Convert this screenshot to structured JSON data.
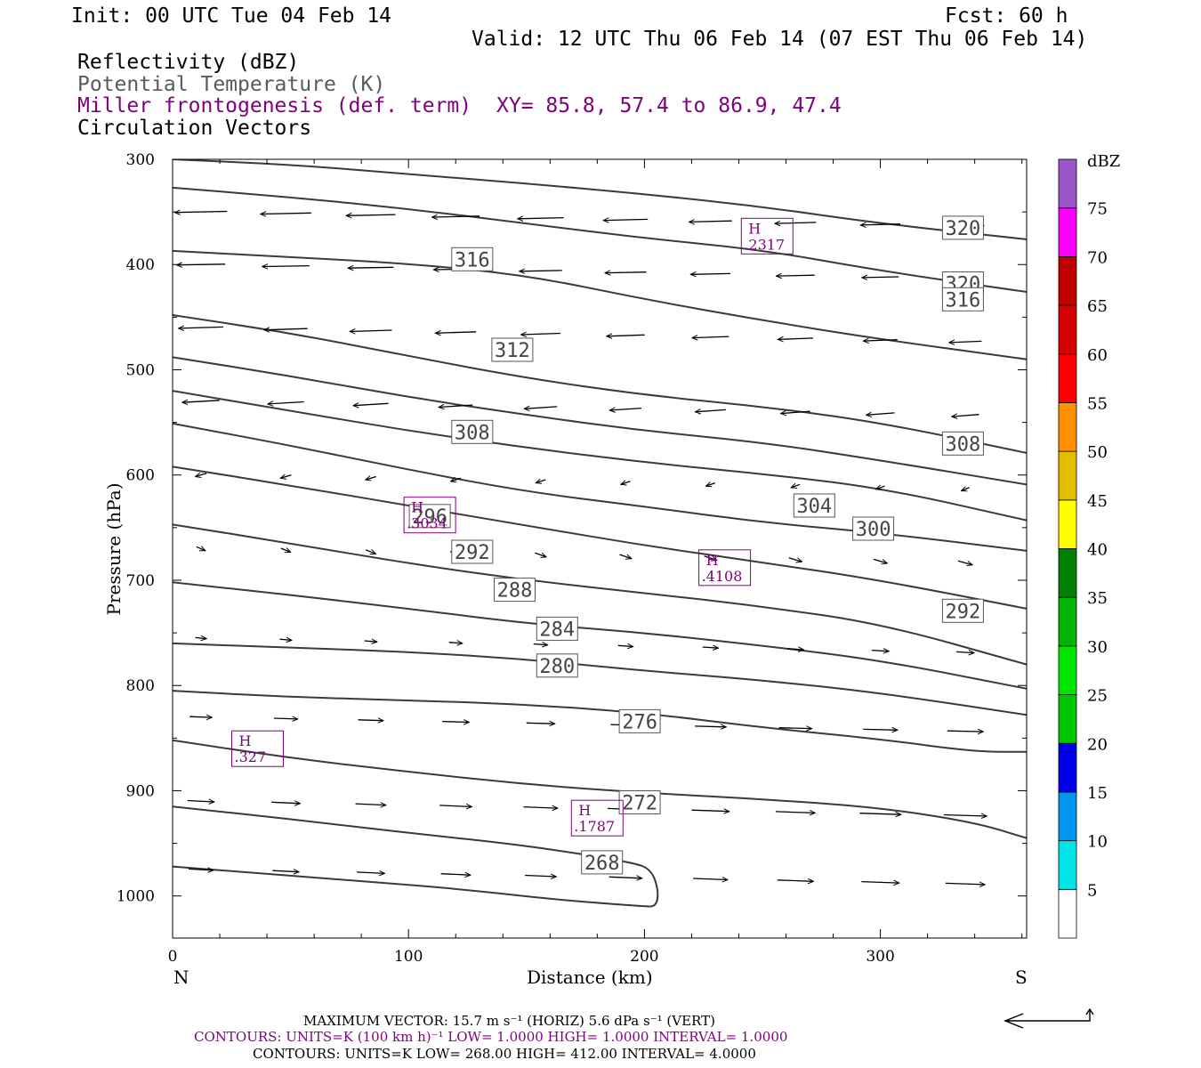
{
  "header": {
    "init": "Init: 00 UTC Tue 04 Feb 14",
    "fcst": "Fcst:   60 h",
    "valid": "Valid: 12 UTC Thu 06 Feb 14 (07 EST Thu 06 Feb 14)"
  },
  "legend": {
    "reflectivity": "Reflectivity (dBZ)",
    "theta": "Potential Temperature (K)",
    "frontogenesis": "Miller frontogenesis (def. term)",
    "xy": "XY=  85.8, 57.4 to  86.9, 47.4",
    "vectors": "Circulation Vectors"
  },
  "footer": {
    "max_vector": "MAXIMUM VECTOR:  15.7 m s⁻¹ (HORIZ)          5.6 dPa s⁻¹ (VERT)",
    "contours_fronto": "CONTOURS:  UNITS=K (100 km h)⁻¹  LOW=   1.0000        HIGH=  1.0000        INTERVAL=    1.0000",
    "contours_theta": "CONTOURS:  UNITS=K  LOW=   268.00       HIGH=  412.00        INTERVAL=     4.0000"
  },
  "colors": {
    "theta_contour": "#3a3a3a",
    "fronto": "#7f007f",
    "vector": "#000000"
  },
  "chart_data": {
    "type": "cross-section",
    "xlabel": "Distance (km)",
    "ylabel": "Pressure (hPa)",
    "xlim": [
      0,
      362
    ],
    "ylim": [
      1040,
      300
    ],
    "x_ticks": [
      0,
      100,
      200,
      300
    ],
    "y_ticks": [
      300,
      400,
      500,
      600,
      700,
      800,
      900,
      1000
    ],
    "x_end_labels": {
      "left": "N",
      "right": "S"
    },
    "theta_contours": [
      {
        "label": "268",
        "label_at": [
          182,
          968
        ],
        "points": [
          [
            0,
            972
          ],
          [
            40,
            979
          ],
          [
            80,
            986
          ],
          [
            120,
            993
          ],
          [
            160,
            1003
          ],
          [
            200,
            1010
          ],
          [
            205,
            1010
          ],
          [
            206,
            995
          ],
          [
            203,
            975
          ],
          [
            195,
            968
          ],
          [
            150,
            952
          ],
          [
            100,
            940
          ],
          [
            50,
            927
          ],
          [
            0,
            915
          ]
        ]
      },
      {
        "label": "272",
        "label_at": [
          198,
          911
        ],
        "points": [
          [
            0,
            852
          ],
          [
            50,
            869
          ],
          [
            100,
            882
          ],
          [
            150,
            894
          ],
          [
            200,
            902
          ],
          [
            250,
            908
          ],
          [
            300,
            916
          ],
          [
            340,
            930
          ],
          [
            362,
            945
          ]
        ]
      },
      {
        "label": "276",
        "label_at": [
          198,
          834
        ],
        "points": [
          [
            0,
            805
          ],
          [
            50,
            811
          ],
          [
            100,
            814
          ],
          [
            150,
            818
          ],
          [
            200,
            826
          ],
          [
            250,
            840
          ],
          [
            300,
            851
          ],
          [
            340,
            863
          ],
          [
            362,
            863
          ]
        ]
      },
      {
        "label": "280",
        "label_at": [
          163,
          781
        ],
        "points": [
          [
            0,
            760
          ],
          [
            50,
            764
          ],
          [
            100,
            768
          ],
          [
            150,
            775
          ],
          [
            200,
            786
          ],
          [
            250,
            795
          ],
          [
            300,
            807
          ],
          [
            362,
            828
          ]
        ]
      },
      {
        "label": "284",
        "label_at": [
          163,
          746
        ],
        "points": [
          [
            0,
            702
          ],
          [
            50,
            714
          ],
          [
            100,
            727
          ],
          [
            150,
            741
          ],
          [
            200,
            750
          ],
          [
            250,
            762
          ],
          [
            300,
            776
          ],
          [
            362,
            803
          ]
        ]
      },
      {
        "label": "288",
        "label_at": [
          145,
          709
        ],
        "points": [
          [
            0,
            647
          ],
          [
            50,
            665
          ],
          [
            100,
            684
          ],
          [
            150,
            700
          ],
          [
            200,
            712
          ],
          [
            250,
            725
          ],
          [
            300,
            741
          ],
          [
            362,
            780
          ]
        ]
      },
      {
        "label": "292",
        "label_at": [
          127,
          673
        ],
        "points": [
          [
            0,
            592
          ],
          [
            50,
            610
          ],
          [
            100,
            629
          ],
          [
            150,
            648
          ],
          [
            200,
            667
          ],
          [
            250,
            683
          ],
          [
            300,
            700
          ],
          [
            362,
            727
          ]
        ]
      },
      {
        "label": "296",
        "label_at": [
          109,
          639
        ],
        "points": [
          [
            0,
            551
          ],
          [
            50,
            572
          ],
          [
            100,
            595
          ],
          [
            150,
            616
          ],
          [
            200,
            630
          ],
          [
            250,
            645
          ],
          [
            300,
            655
          ],
          [
            362,
            672
          ]
        ]
      },
      {
        "label": "300",
        "label_at": [
          297,
          651
        ],
        "points": [
          [
            0,
            520
          ],
          [
            50,
            539
          ],
          [
            100,
            558
          ],
          [
            150,
            574
          ],
          [
            200,
            588
          ],
          [
            250,
            599
          ],
          [
            300,
            612
          ],
          [
            362,
            643
          ]
        ]
      },
      {
        "label": "304",
        "label_at": [
          272,
          629
        ],
        "points": [
          [
            0,
            488
          ],
          [
            50,
            506
          ],
          [
            100,
            526
          ],
          [
            150,
            543
          ],
          [
            200,
            558
          ],
          [
            250,
            569
          ],
          [
            300,
            586
          ],
          [
            362,
            609
          ]
        ]
      },
      {
        "label": "308",
        "label_at": [
          127,
          559
        ],
        "points": [
          [
            0,
            448
          ],
          [
            50,
            465
          ],
          [
            100,
            487
          ],
          [
            150,
            508
          ],
          [
            200,
            524
          ],
          [
            250,
            535
          ],
          [
            300,
            550
          ],
          [
            362,
            579
          ]
        ]
      },
      {
        "label": "312",
        "label_at": [
          144,
          481
        ],
        "points": [
          [
            0,
            387
          ],
          [
            50,
            393
          ],
          [
            100,
            399
          ],
          [
            150,
            410
          ],
          [
            200,
            433
          ],
          [
            250,
            453
          ],
          [
            300,
            471
          ],
          [
            362,
            490
          ]
        ]
      },
      {
        "label": "316",
        "label_at": [
          127,
          395
        ],
        "points": [
          [
            0,
            327
          ],
          [
            50,
            336
          ],
          [
            100,
            347
          ],
          [
            150,
            361
          ],
          [
            200,
            375
          ],
          [
            250,
            386
          ],
          [
            300,
            406
          ],
          [
            362,
            426
          ]
        ]
      },
      {
        "label": "320",
        "label_at": [
          335,
          418
        ],
        "points": [
          [
            0,
            300
          ],
          [
            50,
            305
          ],
          [
            100,
            314
          ],
          [
            150,
            323
          ],
          [
            200,
            333
          ],
          [
            250,
            345
          ],
          [
            300,
            361
          ],
          [
            362,
            376
          ]
        ]
      }
    ],
    "theta_side_labels": [
      {
        "label": "320",
        "at": [
          335,
          365
        ]
      },
      {
        "label": "316",
        "at": [
          335,
          433
        ]
      },
      {
        "label": "308",
        "at": [
          335,
          570
        ]
      },
      {
        "label": "292",
        "at": [
          335,
          729
        ]
      }
    ],
    "frontogenesis_highs": [
      {
        "label": "H",
        "value": ".2317",
        "at": [
          252,
          373
        ]
      },
      {
        "label": "H",
        "value": ".3034",
        "at": [
          109,
          638
        ]
      },
      {
        "label": "H",
        "value": ".4108",
        "at": [
          234,
          688
        ]
      },
      {
        "label": "H",
        "value": ".327",
        "at": [
          36,
          860
        ]
      },
      {
        "label": "H",
        "value": ".1787",
        "at": [
          180,
          926
        ]
      }
    ],
    "circulation_vectors": [
      {
        "p": 350,
        "u": -14,
        "v": 0.4
      },
      {
        "p": 400,
        "u": -13,
        "v": 0.3
      },
      {
        "p": 460,
        "u": -12,
        "v": 0.5
      },
      {
        "p": 530,
        "u": -10,
        "v": 0.8
      },
      {
        "p": 600,
        "u": -3,
        "v": 1.2
      },
      {
        "p": 670,
        "u": 4,
        "v": 1.5
      },
      {
        "p": 755,
        "u": 5,
        "v": 0.4
      },
      {
        "p": 830,
        "u": 10,
        "v": 0.3
      },
      {
        "p": 910,
        "u": 12,
        "v": 0.5
      },
      {
        "p": 975,
        "u": 11,
        "v": 0.5
      }
    ],
    "colorbar": {
      "title": "dBZ",
      "levels": [
        5,
        10,
        15,
        20,
        25,
        30,
        35,
        40,
        45,
        50,
        55,
        60,
        65,
        70,
        75
      ],
      "colors": [
        "#00e5e5",
        "#0096f0",
        "#0000e8",
        "#00c800",
        "#00e600",
        "#00b400",
        "#008000",
        "#ffff00",
        "#e6be00",
        "#ff9000",
        "#ff0000",
        "#d60000",
        "#c00000",
        "#ff00ff",
        "#9955c9"
      ]
    }
  }
}
